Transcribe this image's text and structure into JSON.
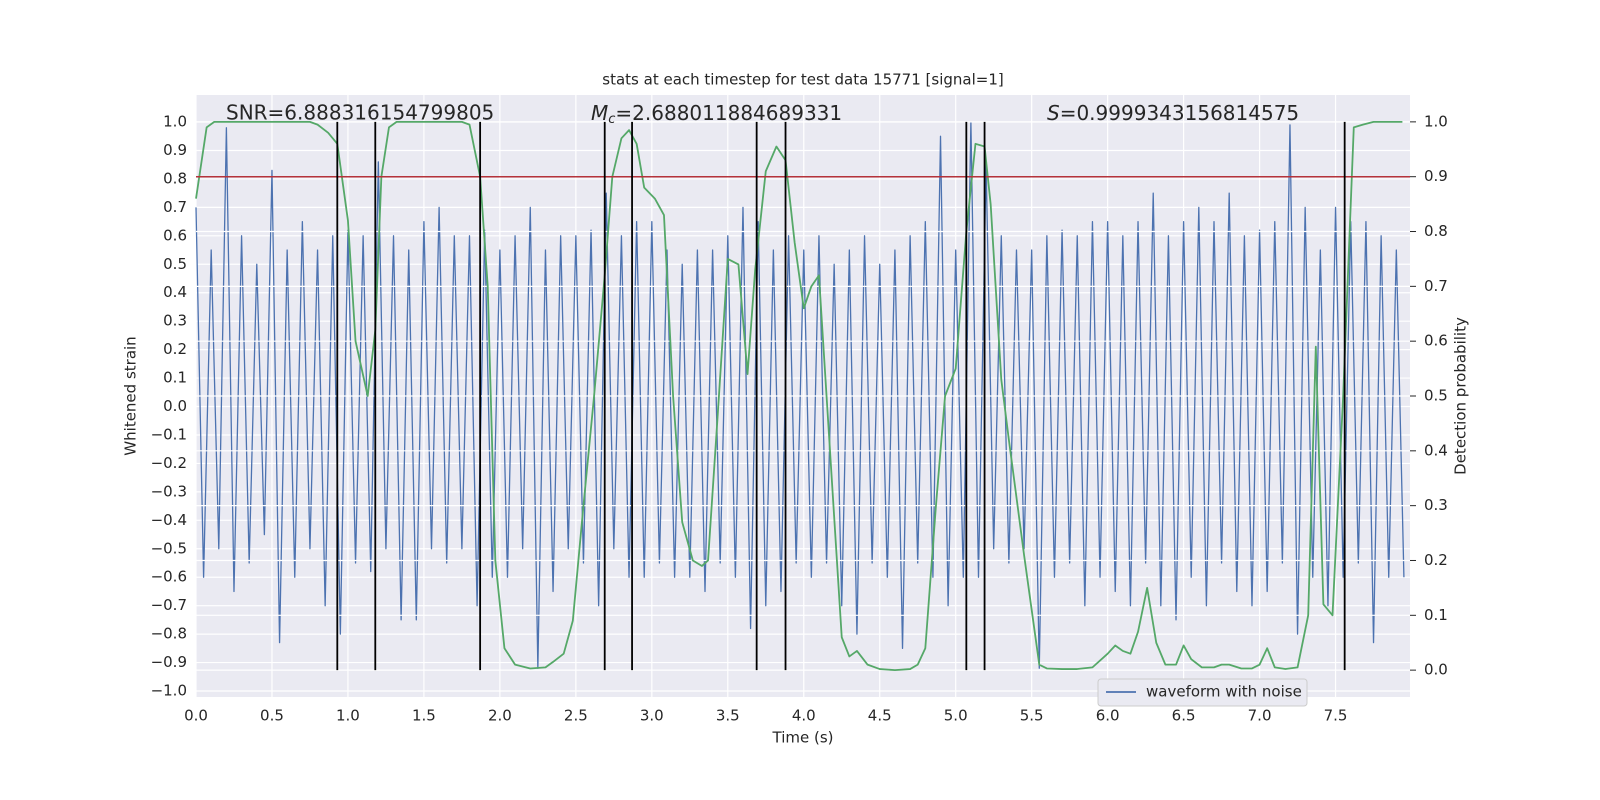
{
  "chart_data": {
    "type": "line",
    "title": "stats at each timestep for test data 15771 [signal=1]",
    "xlabel": "Time (s)",
    "ylabel": "Whitened strain",
    "y2label": "Detection probability",
    "annotations": [
      {
        "text": "SNR=6.888316154799805"
      },
      {
        "symbol": "M",
        "subscript": "c",
        "text": "=2.688011884689331"
      },
      {
        "symbol": "S",
        "text": "=0.9999343156814575"
      }
    ],
    "legend": "lower right",
    "grid": true,
    "xlim": [
      0,
      7.99
    ],
    "ylim": [
      -1.021,
      1.095
    ],
    "y2lim": [
      -0.049,
      1.049
    ],
    "xticks": [
      {
        "value": 0,
        "label": "0.0"
      },
      0.5,
      {
        "value": 1,
        "label": "1.0"
      },
      1.5,
      {
        "value": 2,
        "label": "2.0"
      },
      2.5,
      {
        "value": 3,
        "label": "3.0"
      },
      3.5,
      {
        "value": 4,
        "label": "4.0"
      },
      4.5,
      {
        "value": 5,
        "label": "5.0"
      },
      5.5,
      {
        "value": 6,
        "label": "6.0"
      },
      6.5,
      {
        "value": 7,
        "label": "7.0"
      },
      7.5
    ],
    "yticks": [
      {
        "value": -1,
        "label": "−1.0"
      },
      {
        "value": -0.9,
        "label": "−0.9"
      },
      {
        "value": -0.8,
        "label": "−0.8"
      },
      {
        "value": -0.7,
        "label": "−0.7"
      },
      {
        "value": -0.6,
        "label": "−0.6"
      },
      {
        "value": -0.5,
        "label": "−0.5"
      },
      {
        "value": -0.4,
        "label": "−0.4"
      },
      {
        "value": -0.3,
        "label": "−0.3"
      },
      {
        "value": -0.2,
        "label": "−0.2"
      },
      {
        "value": -0.1,
        "label": "−0.1"
      },
      {
        "value": 0,
        "label": "0.0"
      },
      0.1,
      0.2,
      0.3,
      0.4,
      0.5,
      0.6,
      0.7,
      0.8,
      0.9,
      {
        "value": 1,
        "label": "1.0"
      }
    ],
    "y2ticks": [
      {
        "value": 0,
        "label": "0.0"
      },
      0.1,
      0.2,
      0.3,
      0.4,
      0.5,
      0.6,
      0.7,
      0.8,
      0.9,
      {
        "value": 1,
        "label": "1.0"
      }
    ],
    "hline": {
      "y2": 0.9,
      "color": "#b5333a"
    },
    "vlines": {
      "color": "#000000",
      "y2": [
        0,
        1
      ],
      "x": [
        0.93,
        1.18,
        1.87,
        2.69,
        2.87,
        3.69,
        3.88,
        5.07,
        5.19,
        7.56
      ]
    },
    "series": [
      {
        "name": "waveform with noise",
        "color": "#4c72b0",
        "x": [
          0,
          0.05,
          0.1,
          0.15,
          0.2,
          0.25,
          0.3,
          0.35,
          0.4,
          0.45,
          0.5,
          0.55,
          0.6,
          0.65,
          0.7,
          0.75,
          0.8,
          0.85,
          0.9,
          0.95,
          1,
          1.05,
          1.1,
          1.15,
          1.2,
          1.25,
          1.3,
          1.35,
          1.4,
          1.45,
          1.5,
          1.55,
          1.6,
          1.65,
          1.7,
          1.75,
          1.8,
          1.85,
          1.9,
          1.95,
          2,
          2.05,
          2.1,
          2.15,
          2.2,
          2.25,
          2.3,
          2.35,
          2.4,
          2.45,
          2.5,
          2.55,
          2.6,
          2.65,
          2.7,
          2.75,
          2.8,
          2.85,
          2.9,
          2.95,
          3,
          3.05,
          3.1,
          3.15,
          3.2,
          3.25,
          3.3,
          3.35,
          3.4,
          3.45,
          3.5,
          3.55,
          3.6,
          3.65,
          3.7,
          3.75,
          3.8,
          3.85,
          3.9,
          3.95,
          4,
          4.05,
          4.1,
          4.15,
          4.2,
          4.25,
          4.3,
          4.35,
          4.4,
          4.45,
          4.5,
          4.55,
          4.6,
          4.65,
          4.7,
          4.75,
          4.8,
          4.85,
          4.9,
          4.95,
          5,
          5.05,
          5.1,
          5.15,
          5.2,
          5.25,
          5.3,
          5.35,
          5.4,
          5.45,
          5.5,
          5.55,
          5.6,
          5.65,
          5.7,
          5.75,
          5.8,
          5.85,
          5.9,
          5.95,
          6,
          6.05,
          6.1,
          6.15,
          6.2,
          6.25,
          6.3,
          6.35,
          6.4,
          6.45,
          6.5,
          6.55,
          6.6,
          6.65,
          6.7,
          6.75,
          6.8,
          6.85,
          6.9,
          6.95,
          7,
          7.05,
          7.1,
          7.15,
          7.2,
          7.25,
          7.3,
          7.35,
          7.4,
          7.45,
          7.5,
          7.55,
          7.6,
          7.65,
          7.7,
          7.75,
          7.8,
          7.85,
          7.9,
          7.95
        ],
        "values": [
          0.7,
          -0.6,
          0.55,
          -0.5,
          0.98,
          -0.65,
          0.6,
          -0.55,
          0.5,
          -0.45,
          0.83,
          -0.83,
          0.55,
          -0.6,
          0.65,
          -0.5,
          0.55,
          -0.7,
          0.6,
          -0.8,
          0.62,
          -0.55,
          0.6,
          -0.58,
          0.86,
          -0.5,
          0.6,
          -0.75,
          0.55,
          -0.75,
          0.65,
          -0.5,
          0.7,
          -0.55,
          0.6,
          -0.5,
          0.6,
          -0.7,
          0.62,
          -0.6,
          0.55,
          -0.6,
          0.6,
          -0.5,
          0.7,
          -0.92,
          0.55,
          -0.65,
          0.6,
          -0.5,
          0.6,
          -0.55,
          0.62,
          -0.7,
          0.75,
          -0.5,
          0.6,
          -0.6,
          0.65,
          -0.6,
          0.65,
          -0.55,
          0.55,
          -0.6,
          0.5,
          -0.6,
          0.55,
          -0.65,
          0.55,
          -0.55,
          0.6,
          -0.6,
          0.7,
          -0.78,
          0.65,
          -0.7,
          0.55,
          -0.65,
          0.6,
          -0.55,
          0.55,
          -0.6,
          0.6,
          -0.55,
          0.5,
          -0.7,
          0.55,
          -0.8,
          0.6,
          -0.55,
          0.5,
          -0.6,
          0.55,
          -0.85,
          0.6,
          -0.55,
          0.65,
          -0.6,
          0.95,
          -0.7,
          0.55,
          -0.6,
          1.0,
          -0.6,
          0.85,
          -0.5,
          0.6,
          -0.55,
          0.55,
          -0.5,
          0.55,
          -0.92,
          0.6,
          -0.6,
          0.62,
          -0.55,
          0.6,
          -0.7,
          0.65,
          -0.6,
          0.65,
          -0.65,
          0.6,
          -0.7,
          0.65,
          -0.55,
          0.75,
          -0.7,
          0.6,
          -0.75,
          0.65,
          -0.6,
          0.7,
          -0.7,
          0.65,
          -0.55,
          0.75,
          -0.65,
          0.6,
          -0.7,
          0.62,
          -0.65,
          0.65,
          -0.55,
          0.99,
          -0.8,
          0.7,
          -0.6,
          0.55,
          -0.7,
          0.7,
          -0.6,
          0.65,
          -0.55,
          0.65,
          -0.83,
          0.6,
          -0.6,
          0.55,
          -0.6
        ]
      },
      {
        "color": "#55a868",
        "axis": "y2",
        "x": [
          0,
          0.07,
          0.12,
          0.75,
          0.8,
          0.87,
          0.93,
          1,
          1.05,
          1.13,
          1.18,
          1.22,
          1.27,
          1.32,
          1.75,
          1.8,
          1.87,
          1.92,
          1.97,
          2.03,
          2.1,
          2.2,
          2.3,
          2.35,
          2.42,
          2.48,
          2.55,
          2.62,
          2.69,
          2.74,
          2.8,
          2.85,
          2.9,
          2.95,
          3.02,
          3.08,
          3.14,
          3.2,
          3.27,
          3.33,
          3.37,
          3.43,
          3.5,
          3.57,
          3.63,
          3.68,
          3.75,
          3.82,
          3.88,
          3.94,
          4,
          4.05,
          4.1,
          4.15,
          4.25,
          4.3,
          4.35,
          4.42,
          4.5,
          4.6,
          4.7,
          4.75,
          4.8,
          4.87,
          4.93,
          5,
          5.07,
          5.13,
          5.19,
          5.23,
          5.3,
          5.35,
          5.45,
          5.55,
          5.6,
          5.7,
          5.8,
          5.9,
          6,
          6.05,
          6.1,
          6.15,
          6.2,
          6.26,
          6.32,
          6.38,
          6.45,
          6.5,
          6.55,
          6.62,
          6.7,
          6.75,
          6.8,
          6.88,
          6.95,
          7,
          7.05,
          7.1,
          7.17,
          7.25,
          7.32,
          7.37,
          7.42,
          7.48,
          7.55,
          7.62,
          7.68,
          7.75,
          7.94
        ],
        "values": [
          0.86,
          0.99,
          1,
          1,
          0.995,
          0.98,
          0.96,
          0.82,
          0.6,
          0.5,
          0.62,
          0.9,
          0.99,
          1,
          1,
          0.995,
          0.9,
          0.7,
          0.2,
          0.04,
          0.01,
          0.003,
          0.005,
          0.015,
          0.03,
          0.09,
          0.3,
          0.5,
          0.72,
          0.9,
          0.97,
          0.985,
          0.96,
          0.88,
          0.86,
          0.83,
          0.5,
          0.27,
          0.2,
          0.19,
          0.2,
          0.45,
          0.75,
          0.74,
          0.54,
          0.73,
          0.91,
          0.955,
          0.93,
          0.78,
          0.66,
          0.7,
          0.72,
          0.5,
          0.06,
          0.025,
          0.035,
          0.01,
          0.002,
          0,
          0.002,
          0.01,
          0.04,
          0.3,
          0.5,
          0.55,
          0.8,
          0.96,
          0.955,
          0.85,
          0.53,
          0.42,
          0.21,
          0.01,
          0.003,
          0.002,
          0.002,
          0.005,
          0.03,
          0.045,
          0.035,
          0.03,
          0.07,
          0.15,
          0.05,
          0.01,
          0.01,
          0.045,
          0.02,
          0.005,
          0.005,
          0.01,
          0.01,
          0.003,
          0.003,
          0.01,
          0.04,
          0.005,
          0.002,
          0.005,
          0.1,
          0.59,
          0.12,
          0.1,
          0.5,
          0.99,
          0.995,
          1,
          1
        ]
      }
    ]
  }
}
